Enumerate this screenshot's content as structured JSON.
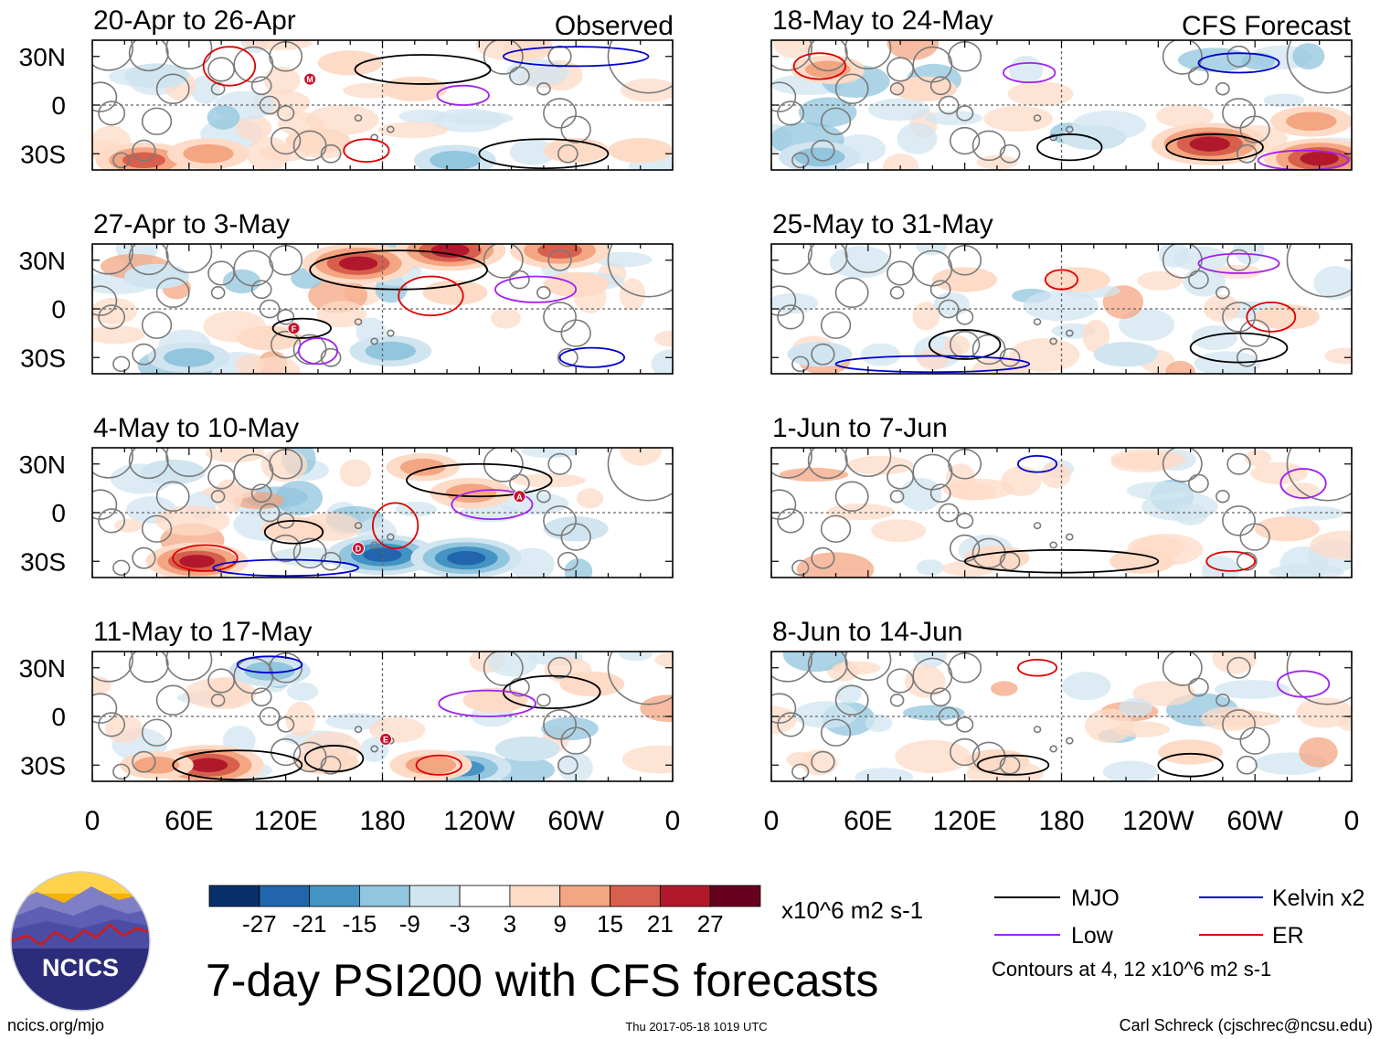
{
  "figure": {
    "title": "7-day PSI200 with CFS forecasts",
    "footer_left": "ncics.org/mjo",
    "footer_center": "Thu 2017-05-18 1019 UTC",
    "footer_right": "Carl Schreck (cjschrec@ncsu.edu)",
    "logo_text": "NCICS",
    "column_labels": {
      "observed": "Observed",
      "forecast": "CFS Forecast"
    },
    "lat_labels": [
      "30N",
      "0",
      "30S"
    ],
    "lon_labels": [
      "0",
      "60E",
      "120E",
      "180",
      "120W",
      "60W",
      "0"
    ]
  },
  "colorbar": {
    "unit": "x10^6 m2 s-1",
    "tick_labels": [
      "-27",
      "-21",
      "-15",
      "-9",
      "-3",
      "3",
      "9",
      "15",
      "21",
      "27"
    ],
    "colors": [
      "#08306b",
      "#2166ac",
      "#4393c3",
      "#92c5de",
      "#d1e5f0",
      "#ffffff",
      "#fddbc7",
      "#f4a582",
      "#d6604d",
      "#b2182b",
      "#67001f"
    ]
  },
  "legend": {
    "items": [
      {
        "label": "MJO",
        "color": "#000000"
      },
      {
        "label": "Kelvin x2",
        "color": "#0000cc"
      },
      {
        "label": "Low",
        "color": "#a020f0"
      },
      {
        "label": "ER",
        "color": "#dd0000"
      }
    ],
    "contours_note": "Contours at 4, 12 x10^6 m2 s-1"
  },
  "chart_data": [
    {
      "type": "heatmap",
      "column": "observed",
      "title": "20-Apr to 26-Apr",
      "seed": 11,
      "xlabel": "",
      "ylabel": "",
      "xlim": [
        0,
        360
      ],
      "ylim": [
        -40,
        40
      ],
      "anomalies": [
        {
          "lon": 32,
          "lat": -34,
          "value": 20
        },
        {
          "lon": 72,
          "lat": -30,
          "value": 15
        },
        {
          "lon": 200,
          "lat": 10,
          "value": 9
        },
        {
          "lon": 225,
          "lat": -34,
          "value": -15
        },
        {
          "lon": 140,
          "lat": -22,
          "value": 9
        },
        {
          "lon": 40,
          "lat": 18,
          "value": -9
        },
        {
          "lon": 160,
          "lat": 26,
          "value": 9
        },
        {
          "lon": 300,
          "lat": -28,
          "value": 9
        },
        {
          "lon": 340,
          "lat": -28,
          "value": 9
        },
        {
          "lon": 100,
          "lat": 8,
          "value": -3
        }
      ],
      "contours": [
        {
          "kind": "MJO",
          "lon": 205,
          "lat": 22,
          "rx": 42,
          "ry": 9
        },
        {
          "kind": "MJO",
          "lon": 280,
          "lat": -30,
          "rx": 40,
          "ry": 9
        },
        {
          "kind": "Kelvin x2",
          "lon": 300,
          "lat": 30,
          "rx": 45,
          "ry": 6
        },
        {
          "kind": "Low",
          "lon": 230,
          "lat": 6,
          "rx": 16,
          "ry": 6
        },
        {
          "kind": "ER",
          "lon": 85,
          "lat": 24,
          "rx": 16,
          "ry": 12
        },
        {
          "kind": "ER",
          "lon": 170,
          "lat": -28,
          "rx": 14,
          "ry": 7
        }
      ],
      "markers": [
        {
          "label": "M",
          "lon": 135,
          "lat": 16
        }
      ]
    },
    {
      "type": "heatmap",
      "column": "observed",
      "title": "27-Apr to 3-May",
      "seed": 23,
      "xlabel": "",
      "ylabel": "",
      "xlim": [
        0,
        360
      ],
      "ylim": [
        -40,
        40
      ],
      "anomalies": [
        {
          "lon": 165,
          "lat": 28,
          "value": 25
        },
        {
          "lon": 222,
          "lat": 36,
          "value": 25
        },
        {
          "lon": 290,
          "lat": 36,
          "value": 21
        },
        {
          "lon": 60,
          "lat": -30,
          "value": -15
        },
        {
          "lon": 185,
          "lat": -26,
          "value": -15
        },
        {
          "lon": 225,
          "lat": 10,
          "value": 9
        },
        {
          "lon": 40,
          "lat": 20,
          "value": -9
        },
        {
          "lon": 110,
          "lat": -18,
          "value": 9
        },
        {
          "lon": 300,
          "lat": 15,
          "value": 9
        }
      ],
      "contours": [
        {
          "kind": "MJO",
          "lon": 190,
          "lat": 24,
          "rx": 55,
          "ry": 12
        },
        {
          "kind": "MJO",
          "lon": 130,
          "lat": -12,
          "rx": 18,
          "ry": 6
        },
        {
          "kind": "Low",
          "lon": 275,
          "lat": 12,
          "rx": 25,
          "ry": 8
        },
        {
          "kind": "Low",
          "lon": 140,
          "lat": -26,
          "rx": 12,
          "ry": 8
        },
        {
          "kind": "ER",
          "lon": 210,
          "lat": 8,
          "rx": 20,
          "ry": 12
        },
        {
          "kind": "Kelvin x2",
          "lon": 310,
          "lat": -30,
          "rx": 20,
          "ry": 6
        }
      ],
      "markers": [
        {
          "label": "F",
          "lon": 125,
          "lat": -12
        }
      ]
    },
    {
      "type": "heatmap",
      "column": "observed",
      "title": "4-May to 10-May",
      "seed": 37,
      "xlabel": "",
      "ylabel": "",
      "xlim": [
        0,
        360
      ],
      "ylim": [
        -40,
        40
      ],
      "anomalies": [
        {
          "lon": 65,
          "lat": -30,
          "value": 22
        },
        {
          "lon": 180,
          "lat": -26,
          "value": -25
        },
        {
          "lon": 232,
          "lat": -28,
          "value": -25
        },
        {
          "lon": 235,
          "lat": 12,
          "value": 15
        },
        {
          "lon": 205,
          "lat": 28,
          "value": 12
        },
        {
          "lon": 50,
          "lat": 25,
          "value": -9
        },
        {
          "lon": 125,
          "lat": -10,
          "value": 9
        },
        {
          "lon": 300,
          "lat": -10,
          "value": -9
        }
      ],
      "contours": [
        {
          "kind": "MJO",
          "lon": 240,
          "lat": 20,
          "rx": 45,
          "ry": 10
        },
        {
          "kind": "MJO",
          "lon": 125,
          "lat": -12,
          "rx": 18,
          "ry": 7
        },
        {
          "kind": "ER",
          "lon": 70,
          "lat": -28,
          "rx": 20,
          "ry": 8
        },
        {
          "kind": "ER",
          "lon": 188,
          "lat": -8,
          "rx": 14,
          "ry": 14
        },
        {
          "kind": "Low",
          "lon": 248,
          "lat": 5,
          "rx": 25,
          "ry": 9
        },
        {
          "kind": "Kelvin x2",
          "lon": 120,
          "lat": -34,
          "rx": 45,
          "ry": 5
        }
      ],
      "markers": [
        {
          "label": "D",
          "lon": 165,
          "lat": -22
        },
        {
          "label": "A",
          "lon": 265,
          "lat": 10
        }
      ]
    },
    {
      "type": "heatmap",
      "column": "observed",
      "title": "11-May to 17-May",
      "seed": 53,
      "xlabel": "",
      "ylabel": "",
      "xlim": [
        0,
        360
      ],
      "ylim": [
        -40,
        40
      ],
      "anomalies": [
        {
          "lon": 72,
          "lat": -30,
          "value": 25
        },
        {
          "lon": 230,
          "lat": -32,
          "value": -20
        },
        {
          "lon": 210,
          "lat": -30,
          "value": 15
        },
        {
          "lon": 145,
          "lat": -28,
          "value": 9
        },
        {
          "lon": 110,
          "lat": 28,
          "value": -15
        },
        {
          "lon": 250,
          "lat": 10,
          "value": 9
        },
        {
          "lon": 40,
          "lat": -30,
          "value": 12
        },
        {
          "lon": 310,
          "lat": 20,
          "value": 9
        },
        {
          "lon": 270,
          "lat": -20,
          "value": -9
        }
      ],
      "contours": [
        {
          "kind": "MJO",
          "lon": 90,
          "lat": -30,
          "rx": 40,
          "ry": 9
        },
        {
          "kind": "MJO",
          "lon": 285,
          "lat": 15,
          "rx": 30,
          "ry": 10
        },
        {
          "kind": "MJO",
          "lon": 150,
          "lat": -26,
          "rx": 18,
          "ry": 8
        },
        {
          "kind": "Low",
          "lon": 245,
          "lat": 8,
          "rx": 30,
          "ry": 8
        },
        {
          "kind": "ER",
          "lon": 215,
          "lat": -30,
          "rx": 14,
          "ry": 6
        },
        {
          "kind": "Kelvin x2",
          "lon": 110,
          "lat": 32,
          "rx": 20,
          "ry": 5
        }
      ],
      "markers": [
        {
          "label": "E",
          "lon": 182,
          "lat": -14
        }
      ]
    },
    {
      "type": "heatmap",
      "column": "forecast",
      "title": "18-May to 24-May",
      "seed": 67,
      "xlabel": "",
      "ylabel": "",
      "xlim": [
        0,
        360
      ],
      "ylim": [
        -40,
        40
      ],
      "anomalies": [
        {
          "lon": 272,
          "lat": -24,
          "value": 27
        },
        {
          "lon": 340,
          "lat": -33,
          "value": 25
        },
        {
          "lon": 335,
          "lat": -10,
          "value": 15
        },
        {
          "lon": 30,
          "lat": -32,
          "value": -15
        },
        {
          "lon": 35,
          "lat": 22,
          "value": 12
        },
        {
          "lon": 95,
          "lat": 10,
          "value": 9
        },
        {
          "lon": 200,
          "lat": -20,
          "value": -9
        },
        {
          "lon": 150,
          "lat": 5,
          "value": -3
        }
      ],
      "contours": [
        {
          "kind": "MJO",
          "lon": 275,
          "lat": -26,
          "rx": 30,
          "ry": 8
        },
        {
          "kind": "MJO",
          "lon": 185,
          "lat": -26,
          "rx": 20,
          "ry": 8
        },
        {
          "kind": "Low",
          "lon": 330,
          "lat": -34,
          "rx": 28,
          "ry": 6
        },
        {
          "kind": "Low",
          "lon": 160,
          "lat": 20,
          "rx": 16,
          "ry": 6
        },
        {
          "kind": "Kelvin x2",
          "lon": 290,
          "lat": 26,
          "rx": 25,
          "ry": 6
        },
        {
          "kind": "ER",
          "lon": 30,
          "lat": 24,
          "rx": 16,
          "ry": 8
        }
      ],
      "markers": []
    },
    {
      "type": "heatmap",
      "column": "forecast",
      "title": "25-May to 31-May",
      "seed": 79,
      "xlabel": "",
      "ylabel": "",
      "xlim": [
        0,
        360
      ],
      "ylim": [
        -40,
        40
      ],
      "anomalies": [
        {
          "lon": 320,
          "lat": -5,
          "value": 9
        },
        {
          "lon": 190,
          "lat": 18,
          "value": 9
        },
        {
          "lon": 30,
          "lat": -28,
          "value": -9
        },
        {
          "lon": 220,
          "lat": -28,
          "value": -9
        },
        {
          "lon": 120,
          "lat": 18,
          "value": 9
        },
        {
          "lon": 80,
          "lat": 0,
          "value": 3
        }
      ],
      "contours": [
        {
          "kind": "MJO",
          "lon": 290,
          "lat": -24,
          "rx": 30,
          "ry": 9
        },
        {
          "kind": "MJO",
          "lon": 120,
          "lat": -22,
          "rx": 22,
          "ry": 9
        },
        {
          "kind": "ER",
          "lon": 180,
          "lat": 18,
          "rx": 10,
          "ry": 6
        },
        {
          "kind": "ER",
          "lon": 310,
          "lat": -5,
          "rx": 15,
          "ry": 9
        },
        {
          "kind": "Low",
          "lon": 290,
          "lat": 28,
          "rx": 25,
          "ry": 6
        },
        {
          "kind": "Kelvin x2",
          "lon": 100,
          "lat": -34,
          "rx": 60,
          "ry": 5
        }
      ],
      "markers": []
    },
    {
      "type": "heatmap",
      "column": "forecast",
      "title": "1-Jun to 7-Jun",
      "seed": 97,
      "xlabel": "",
      "ylabel": "",
      "xlim": [
        0,
        360
      ],
      "ylim": [
        -40,
        40
      ],
      "anomalies": [
        {
          "lon": 140,
          "lat": -28,
          "value": 9
        },
        {
          "lon": 230,
          "lat": -30,
          "value": 9
        },
        {
          "lon": 320,
          "lat": -10,
          "value": 9
        },
        {
          "lon": 90,
          "lat": -5,
          "value": -3
        },
        {
          "lon": 270,
          "lat": 15,
          "value": -3
        },
        {
          "lon": 170,
          "lat": 20,
          "value": -3
        }
      ],
      "contours": [
        {
          "kind": "MJO",
          "lon": 180,
          "lat": -30,
          "rx": 60,
          "ry": 7
        },
        {
          "kind": "Low",
          "lon": 330,
          "lat": 18,
          "rx": 14,
          "ry": 9
        },
        {
          "kind": "ER",
          "lon": 285,
          "lat": -30,
          "rx": 15,
          "ry": 6
        },
        {
          "kind": "Kelvin x2",
          "lon": 165,
          "lat": 30,
          "rx": 12,
          "ry": 5
        }
      ],
      "markers": []
    },
    {
      "type": "heatmap",
      "column": "forecast",
      "title": "8-Jun to 14-Jun",
      "seed": 113,
      "xlabel": "",
      "ylabel": "",
      "xlim": [
        0,
        360
      ],
      "ylim": [
        -40,
        40
      ],
      "anomalies": [
        {
          "lon": 260,
          "lat": -22,
          "value": 9
        },
        {
          "lon": 140,
          "lat": -28,
          "value": 9
        },
        {
          "lon": 300,
          "lat": 25,
          "value": -3
        },
        {
          "lon": 100,
          "lat": 25,
          "value": 3
        },
        {
          "lon": 200,
          "lat": -10,
          "value": -3
        }
      ],
      "contours": [
        {
          "kind": "MJO",
          "lon": 150,
          "lat": -30,
          "rx": 22,
          "ry": 6
        },
        {
          "kind": "MJO",
          "lon": 260,
          "lat": -30,
          "rx": 20,
          "ry": 7
        },
        {
          "kind": "Low",
          "lon": 330,
          "lat": 20,
          "rx": 16,
          "ry": 8
        },
        {
          "kind": "ER",
          "lon": 165,
          "lat": 30,
          "rx": 12,
          "ry": 5
        }
      ],
      "markers": []
    }
  ]
}
